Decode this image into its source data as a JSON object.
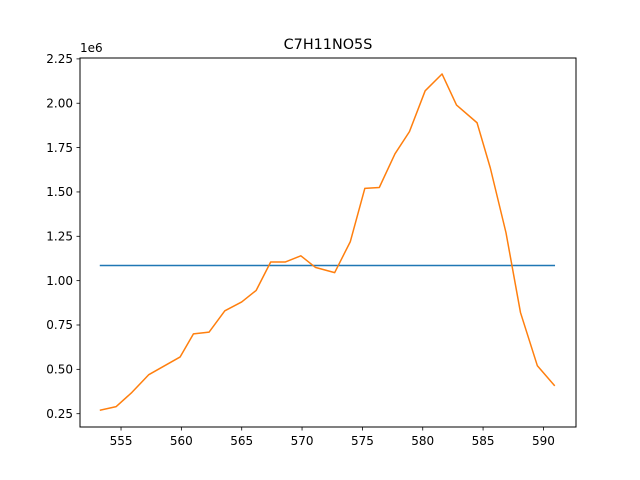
{
  "chart_data": {
    "type": "line",
    "title": "C7H11NO5S",
    "xlabel": "",
    "ylabel": "",
    "y_offset_label": "1e6",
    "y_scale": 1000000,
    "xlim": [
      551.6,
      592.7
    ],
    "ylim": [
      175000,
      2255000
    ],
    "x_ticks": [
      555,
      560,
      565,
      570,
      575,
      580,
      585,
      590
    ],
    "x_tick_labels": [
      "555",
      "560",
      "565",
      "570",
      "575",
      "580",
      "585",
      "590"
    ],
    "y_ticks": [
      250000,
      500000,
      750000,
      1000000,
      1250000,
      1500000,
      1750000,
      2000000,
      2250000
    ],
    "y_tick_labels": [
      "0.25",
      "0.50",
      "0.75",
      "1.00",
      "1.25",
      "1.50",
      "1.75",
      "2.00",
      "2.25"
    ],
    "grid": false,
    "series": [
      {
        "color": "#1f77b4",
        "x": [
          553.3,
          590.9
        ],
        "y": [
          1085000,
          1085000
        ]
      },
      {
        "color": "#ff7f0e",
        "x": [
          553.3,
          554.6,
          555.9,
          557.3,
          558.6,
          559.9,
          561.0,
          562.3,
          563.6,
          565.0,
          566.2,
          567.4,
          568.6,
          569.9,
          571.1,
          572.7,
          574.0,
          575.2,
          576.4,
          577.7,
          578.9,
          580.2,
          581.6,
          582.8,
          584.5,
          585.6,
          586.9,
          588.1,
          589.5,
          590.9
        ],
        "y": [
          270000,
          290000,
          370000,
          470000,
          520000,
          570000,
          700000,
          710000,
          830000,
          880000,
          945000,
          1105000,
          1105000,
          1140000,
          1075000,
          1045000,
          1220000,
          1520000,
          1525000,
          1715000,
          1840000,
          2070000,
          2165000,
          1990000,
          1890000,
          1635000,
          1270000,
          820000,
          520000,
          410000
        ]
      }
    ]
  }
}
